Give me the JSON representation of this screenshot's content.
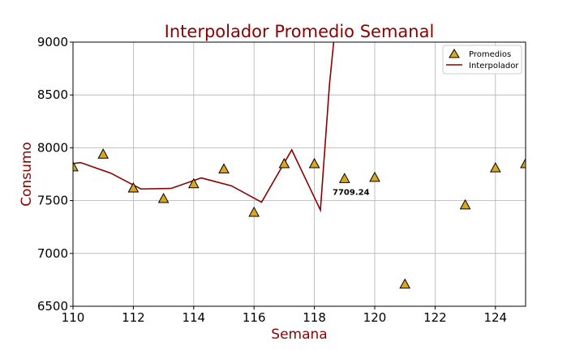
{
  "chart_data": {
    "type": "line",
    "title": "Interpolador Promedio Semanal",
    "xlabel": "Semana",
    "ylabel": "Consumo",
    "xlim": [
      110,
      125
    ],
    "ylim": [
      6500,
      9000
    ],
    "xticks": [
      110,
      112,
      114,
      116,
      118,
      120,
      122,
      124
    ],
    "xtick_labels": [
      "110",
      "112",
      "114",
      "116",
      "118",
      "120",
      "122",
      "124"
    ],
    "yticks": [
      6500,
      7000,
      7500,
      8000,
      8500,
      9000
    ],
    "ytick_labels": [
      "6500",
      "7000",
      "7500",
      "8000",
      "8500",
      "9000"
    ],
    "grid": true,
    "legend_position": "top-right",
    "series": [
      {
        "name": "Promedios",
        "type": "scatter",
        "marker": "triangle",
        "color": "#DAA520",
        "edge_color": "#000000",
        "x": [
          110,
          111,
          112,
          113,
          114,
          115,
          116,
          117,
          118,
          119,
          120,
          121,
          123,
          124,
          125
        ],
        "y": [
          7820,
          7940,
          7620,
          7520,
          7660,
          7800,
          7390,
          7850,
          7850,
          7709.24,
          7720,
          6710,
          7460,
          7810,
          7850
        ]
      },
      {
        "name": "Interpolador",
        "type": "line",
        "color": "#8B0000",
        "x": [
          110,
          110.25,
          111.25,
          112.25,
          113.25,
          114.25,
          115.25,
          116.25,
          117.25,
          118.2,
          118.5,
          118.85
        ],
        "y": [
          7850,
          7860,
          7760,
          7610,
          7615,
          7715,
          7640,
          7485,
          7980,
          7410,
          8600,
          9600
        ]
      }
    ],
    "annotations": [
      {
        "text": "7709.24",
        "x": 119,
        "y": 7709.24
      }
    ]
  },
  "colors": {
    "title": "#8B0000",
    "axis_titles": "#8B0000",
    "grid": "#b0b0b0",
    "line": "#8B0000",
    "marker_fill": "#DAA520"
  }
}
